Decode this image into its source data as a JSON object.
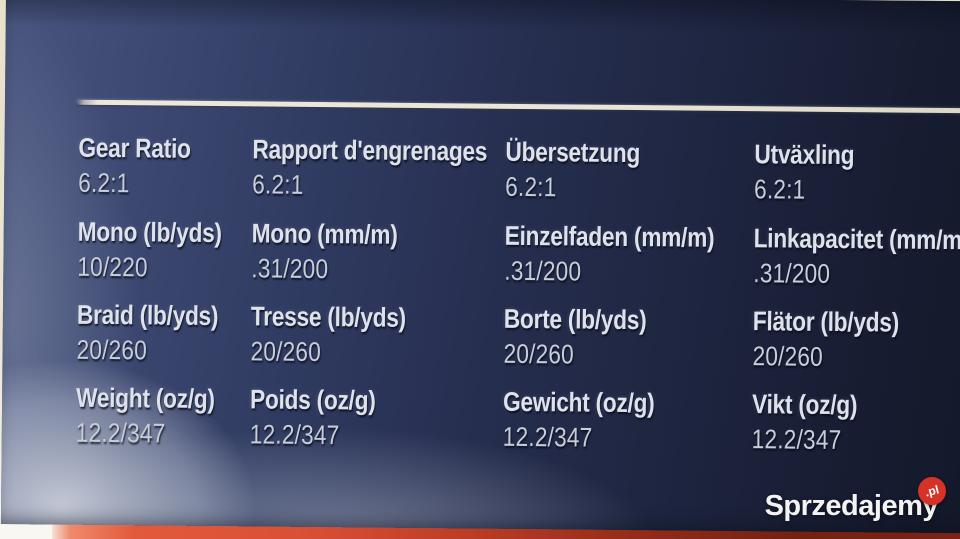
{
  "specs": {
    "columns": [
      {
        "rows": [
          {
            "label": "Gear Ratio",
            "value": "6.2:1"
          },
          {
            "label": "Mono (lb/yds)",
            "value": "10/220"
          },
          {
            "label": "Braid (lb/yds)",
            "value": "20/260"
          },
          {
            "label": "Weight (oz/g)",
            "value": "12.2/347"
          }
        ]
      },
      {
        "rows": [
          {
            "label": "Rapport d'engrenages",
            "value": "6.2:1"
          },
          {
            "label": "Mono (mm/m)",
            "value": ".31/200"
          },
          {
            "label": "Tresse (lb/yds)",
            "value": "20/260"
          },
          {
            "label": "Poids (oz/g)",
            "value": "12.2/347"
          }
        ]
      },
      {
        "rows": [
          {
            "label": "Übersetzung",
            "value": "6.2:1"
          },
          {
            "label": "Einzelfaden (mm/m)",
            "value": ".31/200"
          },
          {
            "label": "Borte (lb/yds)",
            "value": "20/260"
          },
          {
            "label": "Gewicht (oz/g)",
            "value": "12.2/347"
          }
        ]
      },
      {
        "rows": [
          {
            "label": "Utväxling",
            "value": "6.2:1"
          },
          {
            "label": "Linkapacitet (mm/m)",
            "value": ".31/200"
          },
          {
            "label": "Flätor (lb/yds)",
            "value": "20/260"
          },
          {
            "label": "Vikt (oz/g)",
            "value": "12.2/347"
          }
        ]
      }
    ]
  },
  "watermark": {
    "text": "Sprzedajemy",
    "badge": ".pl"
  },
  "colors": {
    "box_navy": "#252e4f",
    "line_cream": "#ece9da",
    "strip_red": "#d94f35",
    "badge_red": "#d63227"
  }
}
